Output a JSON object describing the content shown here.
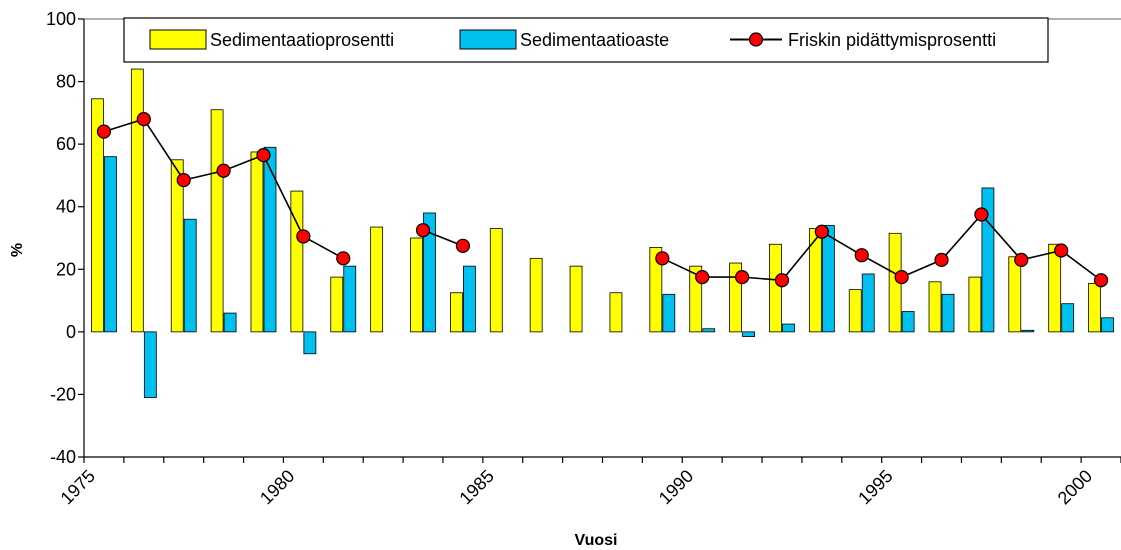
{
  "chart_data": {
    "type": "bar",
    "xlabel": "Vuosi",
    "ylabel": "%",
    "ylim": [
      -40,
      100
    ],
    "yticks": [
      "-40",
      "-20",
      "0",
      "20",
      "40",
      "60",
      "80",
      "100"
    ],
    "xticks": [
      "1975",
      "1980",
      "1985",
      "1990",
      "1995",
      "2000"
    ],
    "xlim": [
      1975,
      2001
    ],
    "grid": false,
    "legend_position": "top",
    "colors": {
      "sedimentaatioprosentti": "#ffff00",
      "sedimentaatioaste": "#00c0f0",
      "friskin": "#ff0000",
      "line": "#000000"
    },
    "series": [
      {
        "name": "Sedimentaatioprosentti",
        "type": "bar",
        "data": [
          {
            "year": 1975,
            "value": 74.5
          },
          {
            "year": 1976,
            "value": 84
          },
          {
            "year": 1977,
            "value": 55
          },
          {
            "year": 1978,
            "value": 71
          },
          {
            "year": 1979,
            "value": 57.5
          },
          {
            "year": 1980,
            "value": 45
          },
          {
            "year": 1981,
            "value": 17.5
          },
          {
            "year": 1982,
            "value": 33.5
          },
          {
            "year": 1983,
            "value": 30
          },
          {
            "year": 1984,
            "value": 12.5
          },
          {
            "year": 1985,
            "value": 33
          },
          {
            "year": 1986,
            "value": 23.5
          },
          {
            "year": 1987,
            "value": 21
          },
          {
            "year": 1988,
            "value": 12.5
          },
          {
            "year": 1989,
            "value": 27
          },
          {
            "year": 1990,
            "value": 21
          },
          {
            "year": 1991,
            "value": 22
          },
          {
            "year": 1992,
            "value": 28
          },
          {
            "year": 1993,
            "value": 33
          },
          {
            "year": 1994,
            "value": 13.5
          },
          {
            "year": 1995,
            "value": 31.5
          },
          {
            "year": 1996,
            "value": 16
          },
          {
            "year": 1997,
            "value": 17.5
          },
          {
            "year": 1998,
            "value": 24
          },
          {
            "year": 1999,
            "value": 28
          },
          {
            "year": 2000,
            "value": 15.5
          }
        ]
      },
      {
        "name": "Sedimentaatioaste",
        "type": "bar",
        "data": [
          {
            "year": 1975,
            "value": 56
          },
          {
            "year": 1976,
            "value": -21
          },
          {
            "year": 1977,
            "value": 36
          },
          {
            "year": 1978,
            "value": 6
          },
          {
            "year": 1979,
            "value": 59
          },
          {
            "year": 1980,
            "value": -7
          },
          {
            "year": 1981,
            "value": 21
          },
          {
            "year": 1983,
            "value": 38
          },
          {
            "year": 1984,
            "value": 21
          },
          {
            "year": 1989,
            "value": 12
          },
          {
            "year": 1990,
            "value": 1
          },
          {
            "year": 1991,
            "value": -1.5
          },
          {
            "year": 1992,
            "value": 2.5
          },
          {
            "year": 1993,
            "value": 34
          },
          {
            "year": 1994,
            "value": 18.5
          },
          {
            "year": 1995,
            "value": 6.5
          },
          {
            "year": 1996,
            "value": 12
          },
          {
            "year": 1997,
            "value": 46
          },
          {
            "year": 1998,
            "value": 0.5
          },
          {
            "year": 1999,
            "value": 9
          },
          {
            "year": 2000,
            "value": 4.5
          }
        ]
      },
      {
        "name": "Friskin pidättymisprosentti",
        "type": "line",
        "segments": [
          [
            {
              "year": 1975,
              "value": 64
            },
            {
              "year": 1976,
              "value": 68
            },
            {
              "year": 1977,
              "value": 48.5
            },
            {
              "year": 1978,
              "value": 51.5
            },
            {
              "year": 1979,
              "value": 56.5
            },
            {
              "year": 1980,
              "value": 30.5
            },
            {
              "year": 1981,
              "value": 23.5
            }
          ],
          [
            {
              "year": 1983,
              "value": 32.5
            },
            {
              "year": 1984,
              "value": 27.5
            }
          ],
          [
            {
              "year": 1989,
              "value": 23.5
            },
            {
              "year": 1990,
              "value": 17.5
            },
            {
              "year": 1991,
              "value": 17.5
            },
            {
              "year": 1992,
              "value": 16.5
            },
            {
              "year": 1993,
              "value": 32
            },
            {
              "year": 1994,
              "value": 24.5
            },
            {
              "year": 1995,
              "value": 17.5
            },
            {
              "year": 1996,
              "value": 23
            },
            {
              "year": 1997,
              "value": 37.5
            },
            {
              "year": 1998,
              "value": 23
            },
            {
              "year": 1999,
              "value": 26
            },
            {
              "year": 2000,
              "value": 16.5
            }
          ]
        ]
      }
    ]
  }
}
